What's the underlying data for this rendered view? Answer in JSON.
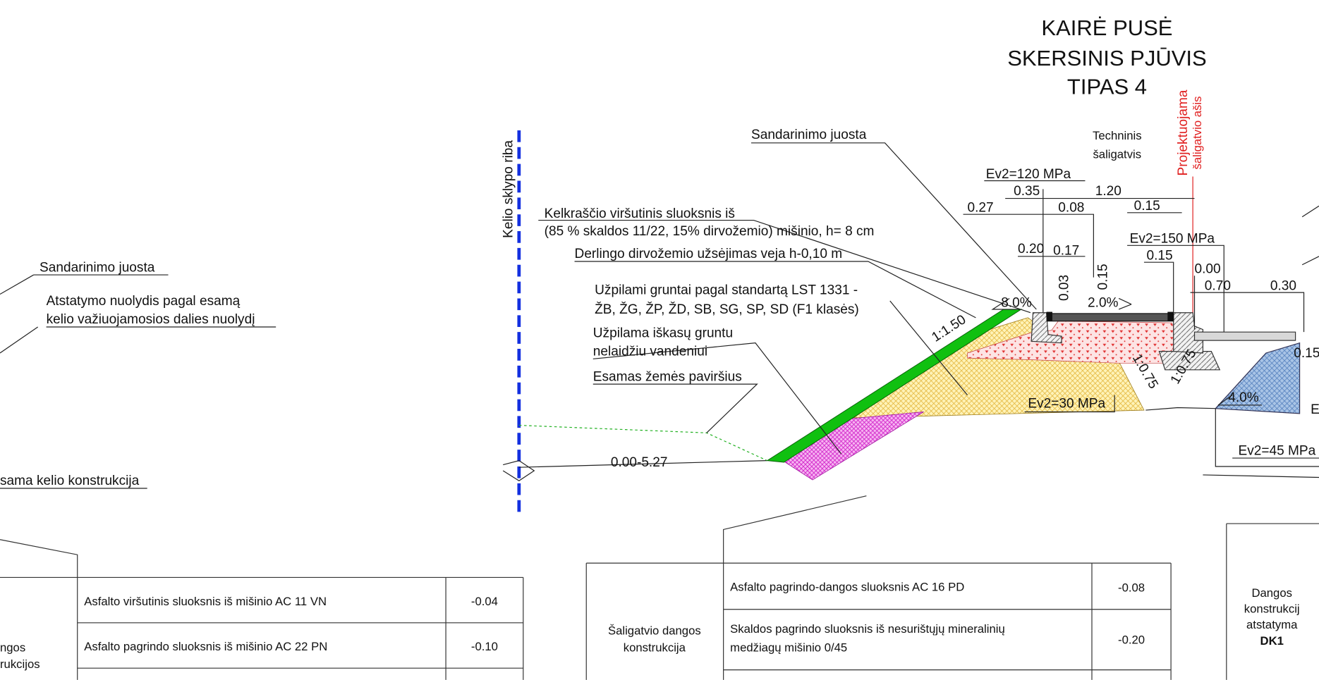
{
  "title": [
    "KAIRĖ PUSĖ",
    "SKERSINIS PJŪVIS",
    "TIPAS 4"
  ],
  "boundary_label": "Kelio sklypo riba",
  "axis_label": [
    "Projektuojama",
    "šaligatvio ašis"
  ],
  "callouts": {
    "seal_right": "Sandarinimo juosta",
    "sidewalk_type": [
      "Techninis",
      "šaligatvis"
    ],
    "shoulder_top": [
      "Kelkraščio viršutinis sluoksnis iš",
      "(85 % skaldos 11/22, 15% dirvožemio) mišinio, h= 8 cm"
    ],
    "topsoil": "Derlingo dirvožemio užsėjimas veja h-0,10 m",
    "fill_soils": [
      "Užpilami gruntai pagal standartą LST 1331 -",
      "ŽB, ŽG, ŽP, ŽD, SB, SG, SP, SD (F1 klasės)"
    ],
    "excavated_fill": [
      "Užpilama iškasų gruntu",
      "nelaidžiu vandeniui"
    ],
    "existing_surface": "Esamas žemės paviršius",
    "seal_left": "Sandarinimo juosta",
    "restore_slope": [
      "Atstatymo nuolydis pagal esamą",
      "kelio važiuojamosios dalies nuolydį"
    ],
    "existing_structure": "sama kelio konstrukcija"
  },
  "dimensions": [
    "Ev2=120 MPa",
    "0.35",
    "1.20",
    "0.27",
    "0.08",
    "0.15",
    "Ev2=150 MPa",
    "0.15",
    "0.20",
    "0.17",
    "0.00",
    "0.70",
    "0.30",
    "0.03",
    "0.15",
    "2.0%",
    "8.0%",
    "1:1.50",
    "1:0.75",
    "1:0.75",
    "4.0%",
    "Ev2=30 MPa",
    "0.15",
    "E",
    "Ev2=45 MPa",
    "0.00-5.27"
  ],
  "tables": {
    "left": {
      "group": [
        "ngos",
        "rukcijos"
      ],
      "rows": [
        {
          "layer": [
            "Asfalto viršutinis sluoksnis iš mišinio AC 11 VN"
          ],
          "thickness": "-0.04"
        },
        {
          "layer": [
            "Asfalto pagrindo sluoksnis iš mišinio AC 22 PN"
          ],
          "thickness": "-0.10"
        }
      ]
    },
    "middle": {
      "group": [
        "Šaligatvio dangos",
        "konstrukcija"
      ],
      "rows": [
        {
          "layer": [
            "Asfalto pagrindo-dangos sluoksnis AC 16 PD"
          ],
          "thickness": "-0.08"
        },
        {
          "layer": [
            "Skaldos pagrindo sluoksnis iš nesurištųjų mineralinių",
            "medžiagų mišinio 0/45"
          ],
          "thickness": "-0.20"
        }
      ]
    },
    "right": {
      "group": [
        "Dangos",
        "konstrukcij",
        "atstatyma",
        "DK1"
      ]
    }
  }
}
